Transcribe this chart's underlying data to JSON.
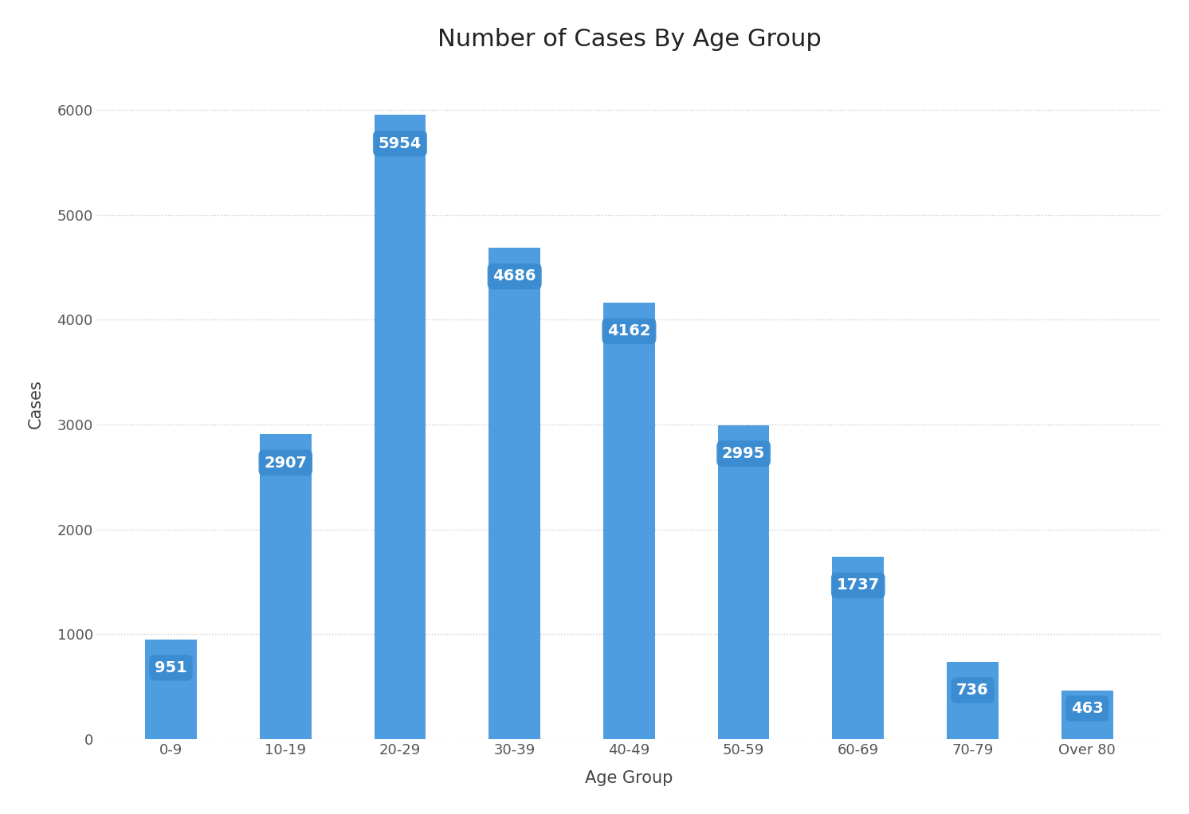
{
  "categories": [
    "0-9",
    "10-19",
    "20-29",
    "30-39",
    "40-49",
    "50-59",
    "60-69",
    "70-79",
    "Over 80"
  ],
  "values": [
    951,
    2907,
    5954,
    4686,
    4162,
    2995,
    1737,
    736,
    463
  ],
  "bar_color": "#4d9de0",
  "label_bg_color": "#3a8bd0",
  "label_text_color": "#ffffff",
  "title": "Number of Cases By Age Group",
  "xlabel": "Age Group",
  "ylabel": "Cases",
  "ylim": [
    0,
    6400
  ],
  "yticks": [
    0,
    1000,
    2000,
    3000,
    4000,
    5000,
    6000
  ],
  "background_color": "#ffffff",
  "grid_color": "#cccccc",
  "title_fontsize": 22,
  "axis_label_fontsize": 15,
  "tick_fontsize": 13,
  "value_label_fontsize": 14
}
